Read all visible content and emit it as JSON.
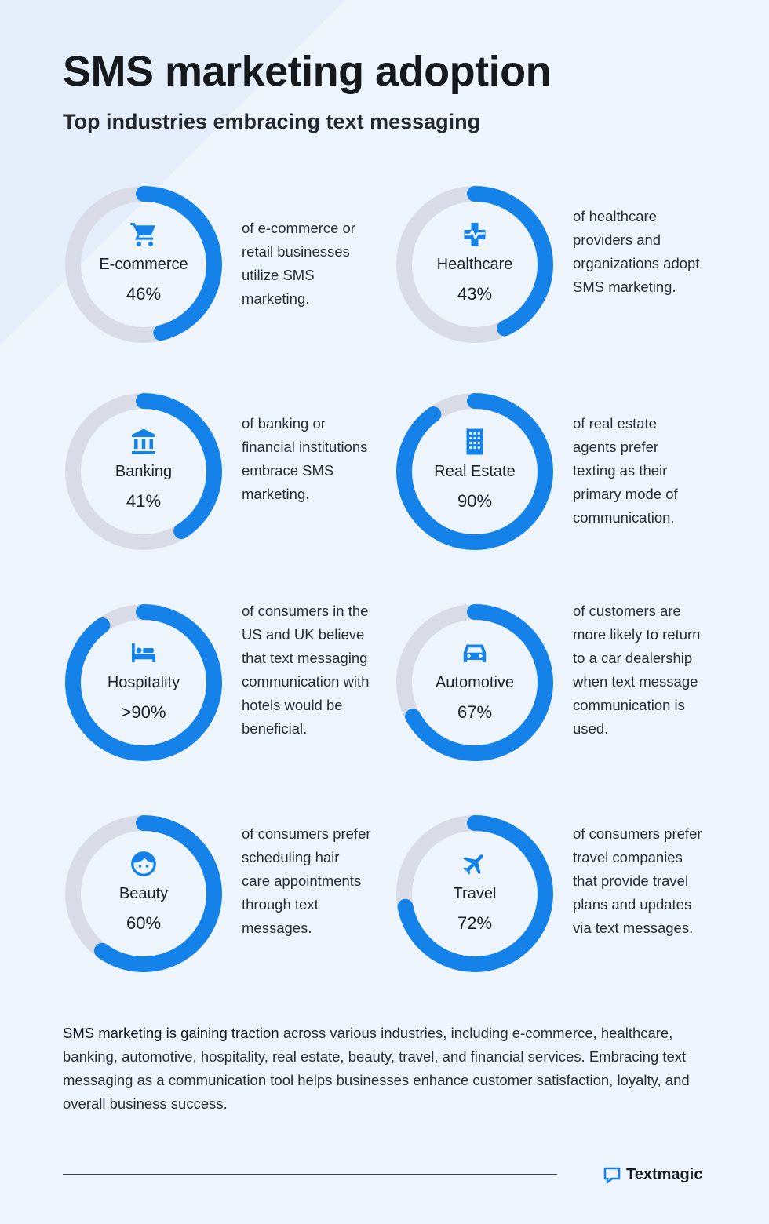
{
  "title": "SMS marketing adoption",
  "subtitle": "Top industries embracing text messaging",
  "colors": {
    "accent": "#1482e8",
    "track": "#d9dce6",
    "background": "#eef4fc"
  },
  "chart_data": {
    "type": "donut-grid",
    "items": [
      {
        "label": "E-commerce",
        "display_value": "46%",
        "value": 46,
        "icon": "shopping-cart-icon",
        "description": "of e-commerce or retail businesses utilize SMS marketing."
      },
      {
        "label": "Healthcare",
        "display_value": "43%",
        "value": 43,
        "icon": "medical-cross-icon",
        "description": "of healthcare providers and organizations adopt SMS marketing."
      },
      {
        "label": "Banking",
        "display_value": "41%",
        "value": 41,
        "icon": "bank-icon",
        "description": "of banking or financial institutions embrace SMS marketing."
      },
      {
        "label": "Real Estate",
        "display_value": "90%",
        "value": 90,
        "icon": "building-icon",
        "description": "of real estate agents prefer texting as their primary mode of communication."
      },
      {
        "label": "Hospitality",
        "display_value": ">90%",
        "value": 90,
        "icon": "bed-icon",
        "description": "of consumers in the US and UK believe that text messaging communication with hotels would be beneficial."
      },
      {
        "label": "Automotive",
        "display_value": "67%",
        "value": 67,
        "icon": "car-icon",
        "description": "of customers are more likely to return to a car dealership when text message communication is used."
      },
      {
        "label": "Beauty",
        "display_value": "60%",
        "value": 60,
        "icon": "face-icon",
        "description": "of consumers prefer scheduling hair care appointments through text messages."
      },
      {
        "label": "Travel",
        "display_value": "72%",
        "value": 72,
        "icon": "airplane-icon",
        "description": "of consumers prefer travel companies that provide travel plans and updates via text messages."
      }
    ]
  },
  "footer": {
    "highlight": "SMS marketing is gaining traction",
    "body": " across various industries, including e-commerce, healthcare, banking, automotive, hospitality, real estate, beauty, travel, and financial services. Embracing text messaging as a communication tool helps businesses enhance customer satisfaction, loyalty, and overall business success."
  },
  "brand": {
    "name": "Textmagic",
    "icon": "textmagic-logo-icon"
  }
}
